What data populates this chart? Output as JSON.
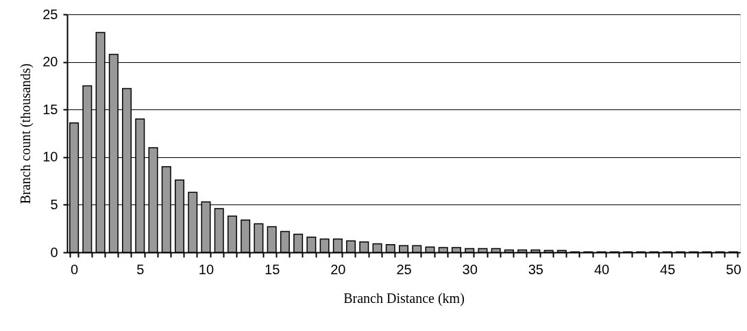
{
  "chart_data": {
    "type": "bar",
    "xlabel": "Branch Distance (km)",
    "ylabel": "Branch count (thousands)",
    "categories": [
      "0",
      null,
      null,
      null,
      null,
      "5",
      null,
      null,
      null,
      null,
      "10",
      null,
      null,
      null,
      null,
      "15",
      null,
      null,
      null,
      null,
      "20",
      null,
      null,
      null,
      null,
      "25",
      null,
      null,
      null,
      null,
      "30",
      null,
      null,
      null,
      null,
      "35",
      null,
      null,
      null,
      null,
      "40",
      null,
      null,
      null,
      null,
      "45",
      null,
      null,
      null,
      null,
      "50"
    ],
    "values": [
      13.6,
      17.5,
      23.1,
      20.8,
      17.2,
      14.0,
      11.0,
      9.0,
      7.6,
      6.3,
      5.3,
      4.6,
      3.8,
      3.4,
      3.0,
      2.7,
      2.2,
      1.9,
      1.6,
      1.4,
      1.4,
      1.2,
      1.1,
      0.9,
      0.8,
      0.7,
      0.7,
      0.55,
      0.5,
      0.5,
      0.4,
      0.4,
      0.4,
      0.25,
      0.25,
      0.25,
      0.2,
      0.2,
      0.05,
      0.05,
      0.05,
      0.05,
      0.05,
      0.05,
      0.05,
      0.05,
      0.05,
      0.05,
      0.05,
      0.05,
      0.05
    ],
    "color": "#999999",
    "ylim": [
      0,
      25
    ],
    "yticks": [
      0,
      5,
      10,
      15,
      20,
      25
    ],
    "grid": "y"
  }
}
